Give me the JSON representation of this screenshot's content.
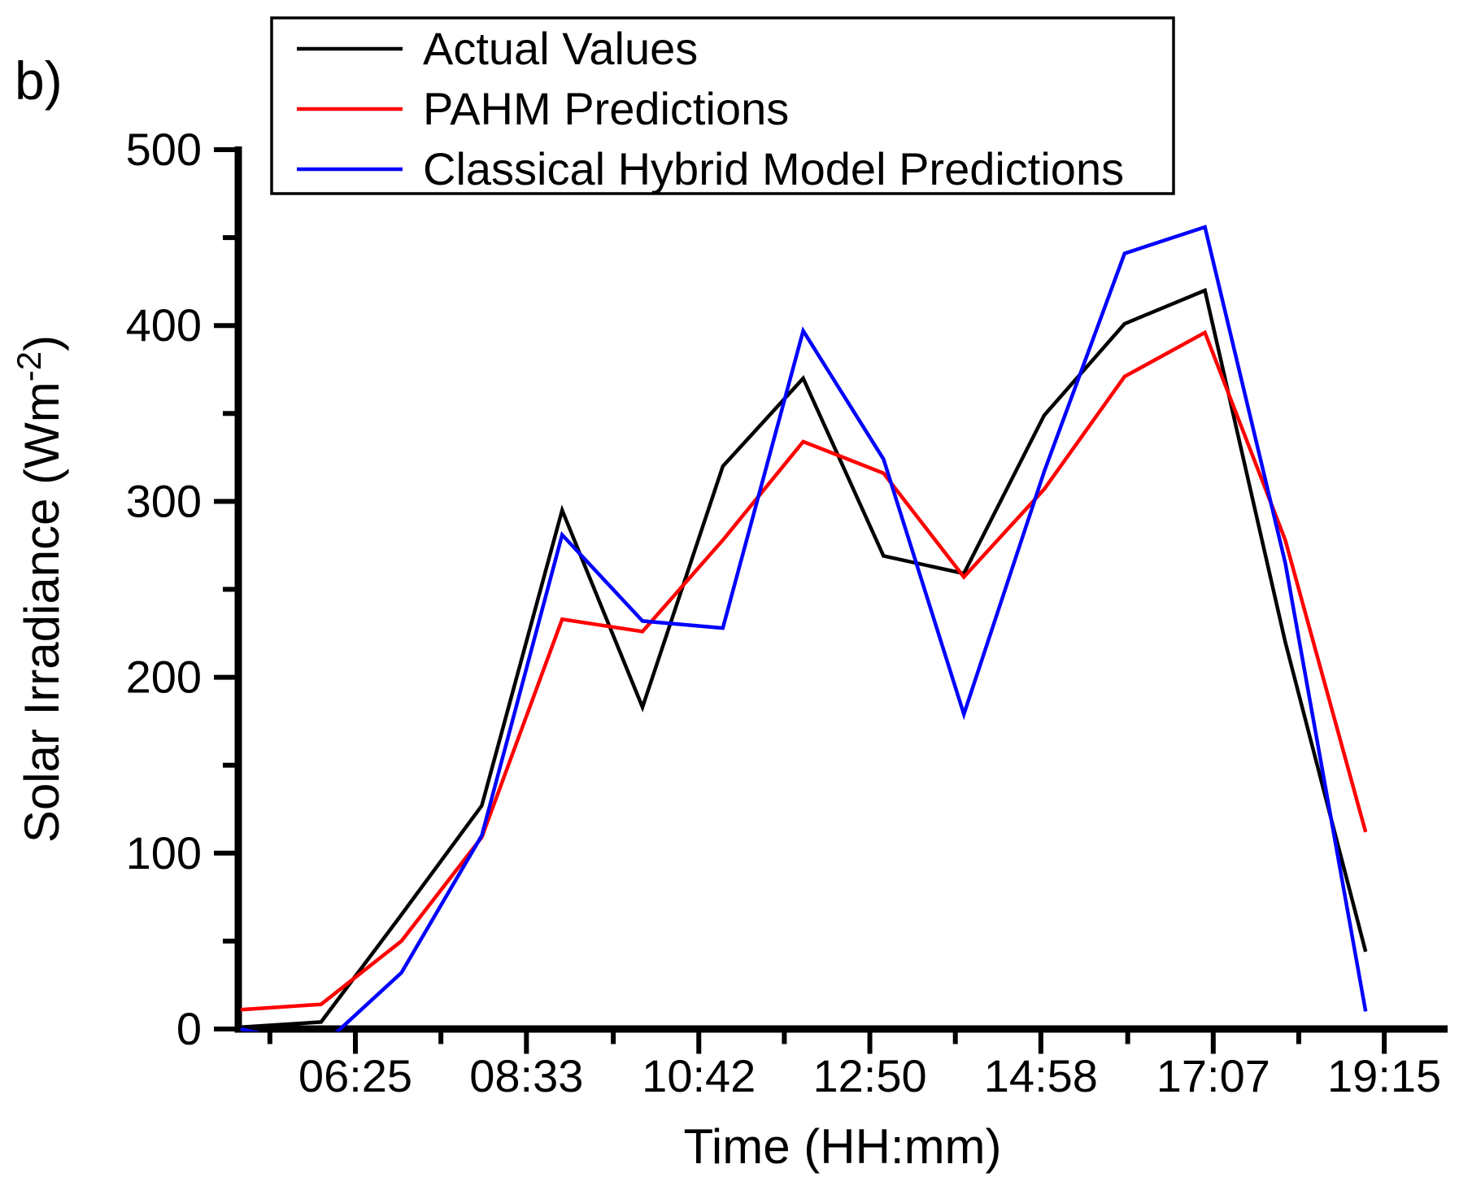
{
  "figure_label": "b)",
  "colors": {
    "background": "#ffffff",
    "axis": "#000000",
    "actual": "#000000",
    "pahm": "#ff0000",
    "classical": "#0000ff"
  },
  "legend": {
    "position": "top-inside",
    "items": [
      {
        "label": "Actual Values",
        "color": "#000000"
      },
      {
        "label": "PAHM Predictions",
        "color": "#ff0000"
      },
      {
        "label": "Classical Hybrid Model Predictions",
        "color": "#0000ff"
      }
    ]
  },
  "chart_data": {
    "type": "line",
    "title": "",
    "xlabel": "Time (HH:mm)",
    "ylabel": "Solar Irradiance (Wm⁻²)",
    "ylabel_parts": {
      "base": "Solar Irradiance (Wm",
      "superscript": "-2",
      "close": ")"
    },
    "grid": false,
    "ylim": [
      0,
      500
    ],
    "y_ticks": [
      0,
      100,
      200,
      300,
      400,
      500
    ],
    "y_minor_step": 50,
    "x_tick_labels": [
      "06:25",
      "08:33",
      "10:42",
      "12:50",
      "14:58",
      "17:07",
      "19:15"
    ],
    "x_minor_offset_minutes": -64,
    "x": [
      "05:00",
      "06:00",
      "07:00",
      "08:00",
      "09:00",
      "10:00",
      "11:00",
      "12:00",
      "13:00",
      "14:00",
      "15:00",
      "16:00",
      "17:00",
      "18:00",
      "19:00"
    ],
    "series": [
      {
        "name": "Actual Values",
        "color": "#000000",
        "values": [
          1,
          4,
          65,
          127,
          295,
          183,
          320,
          370,
          269,
          259,
          349,
          401,
          420,
          220,
          44
        ]
      },
      {
        "name": "PAHM Predictions",
        "color": "#ff0000",
        "values": [
          11,
          14,
          50,
          109,
          233,
          226,
          278,
          334,
          316,
          257,
          307,
          371,
          396,
          278,
          112
        ]
      },
      {
        "name": "Classical Hybrid Model Predictions",
        "color": "#0000ff",
        "values": [
          0,
          -10,
          32,
          110,
          281,
          232,
          228,
          397,
          324,
          179,
          317,
          441,
          456,
          265,
          10
        ]
      }
    ]
  }
}
